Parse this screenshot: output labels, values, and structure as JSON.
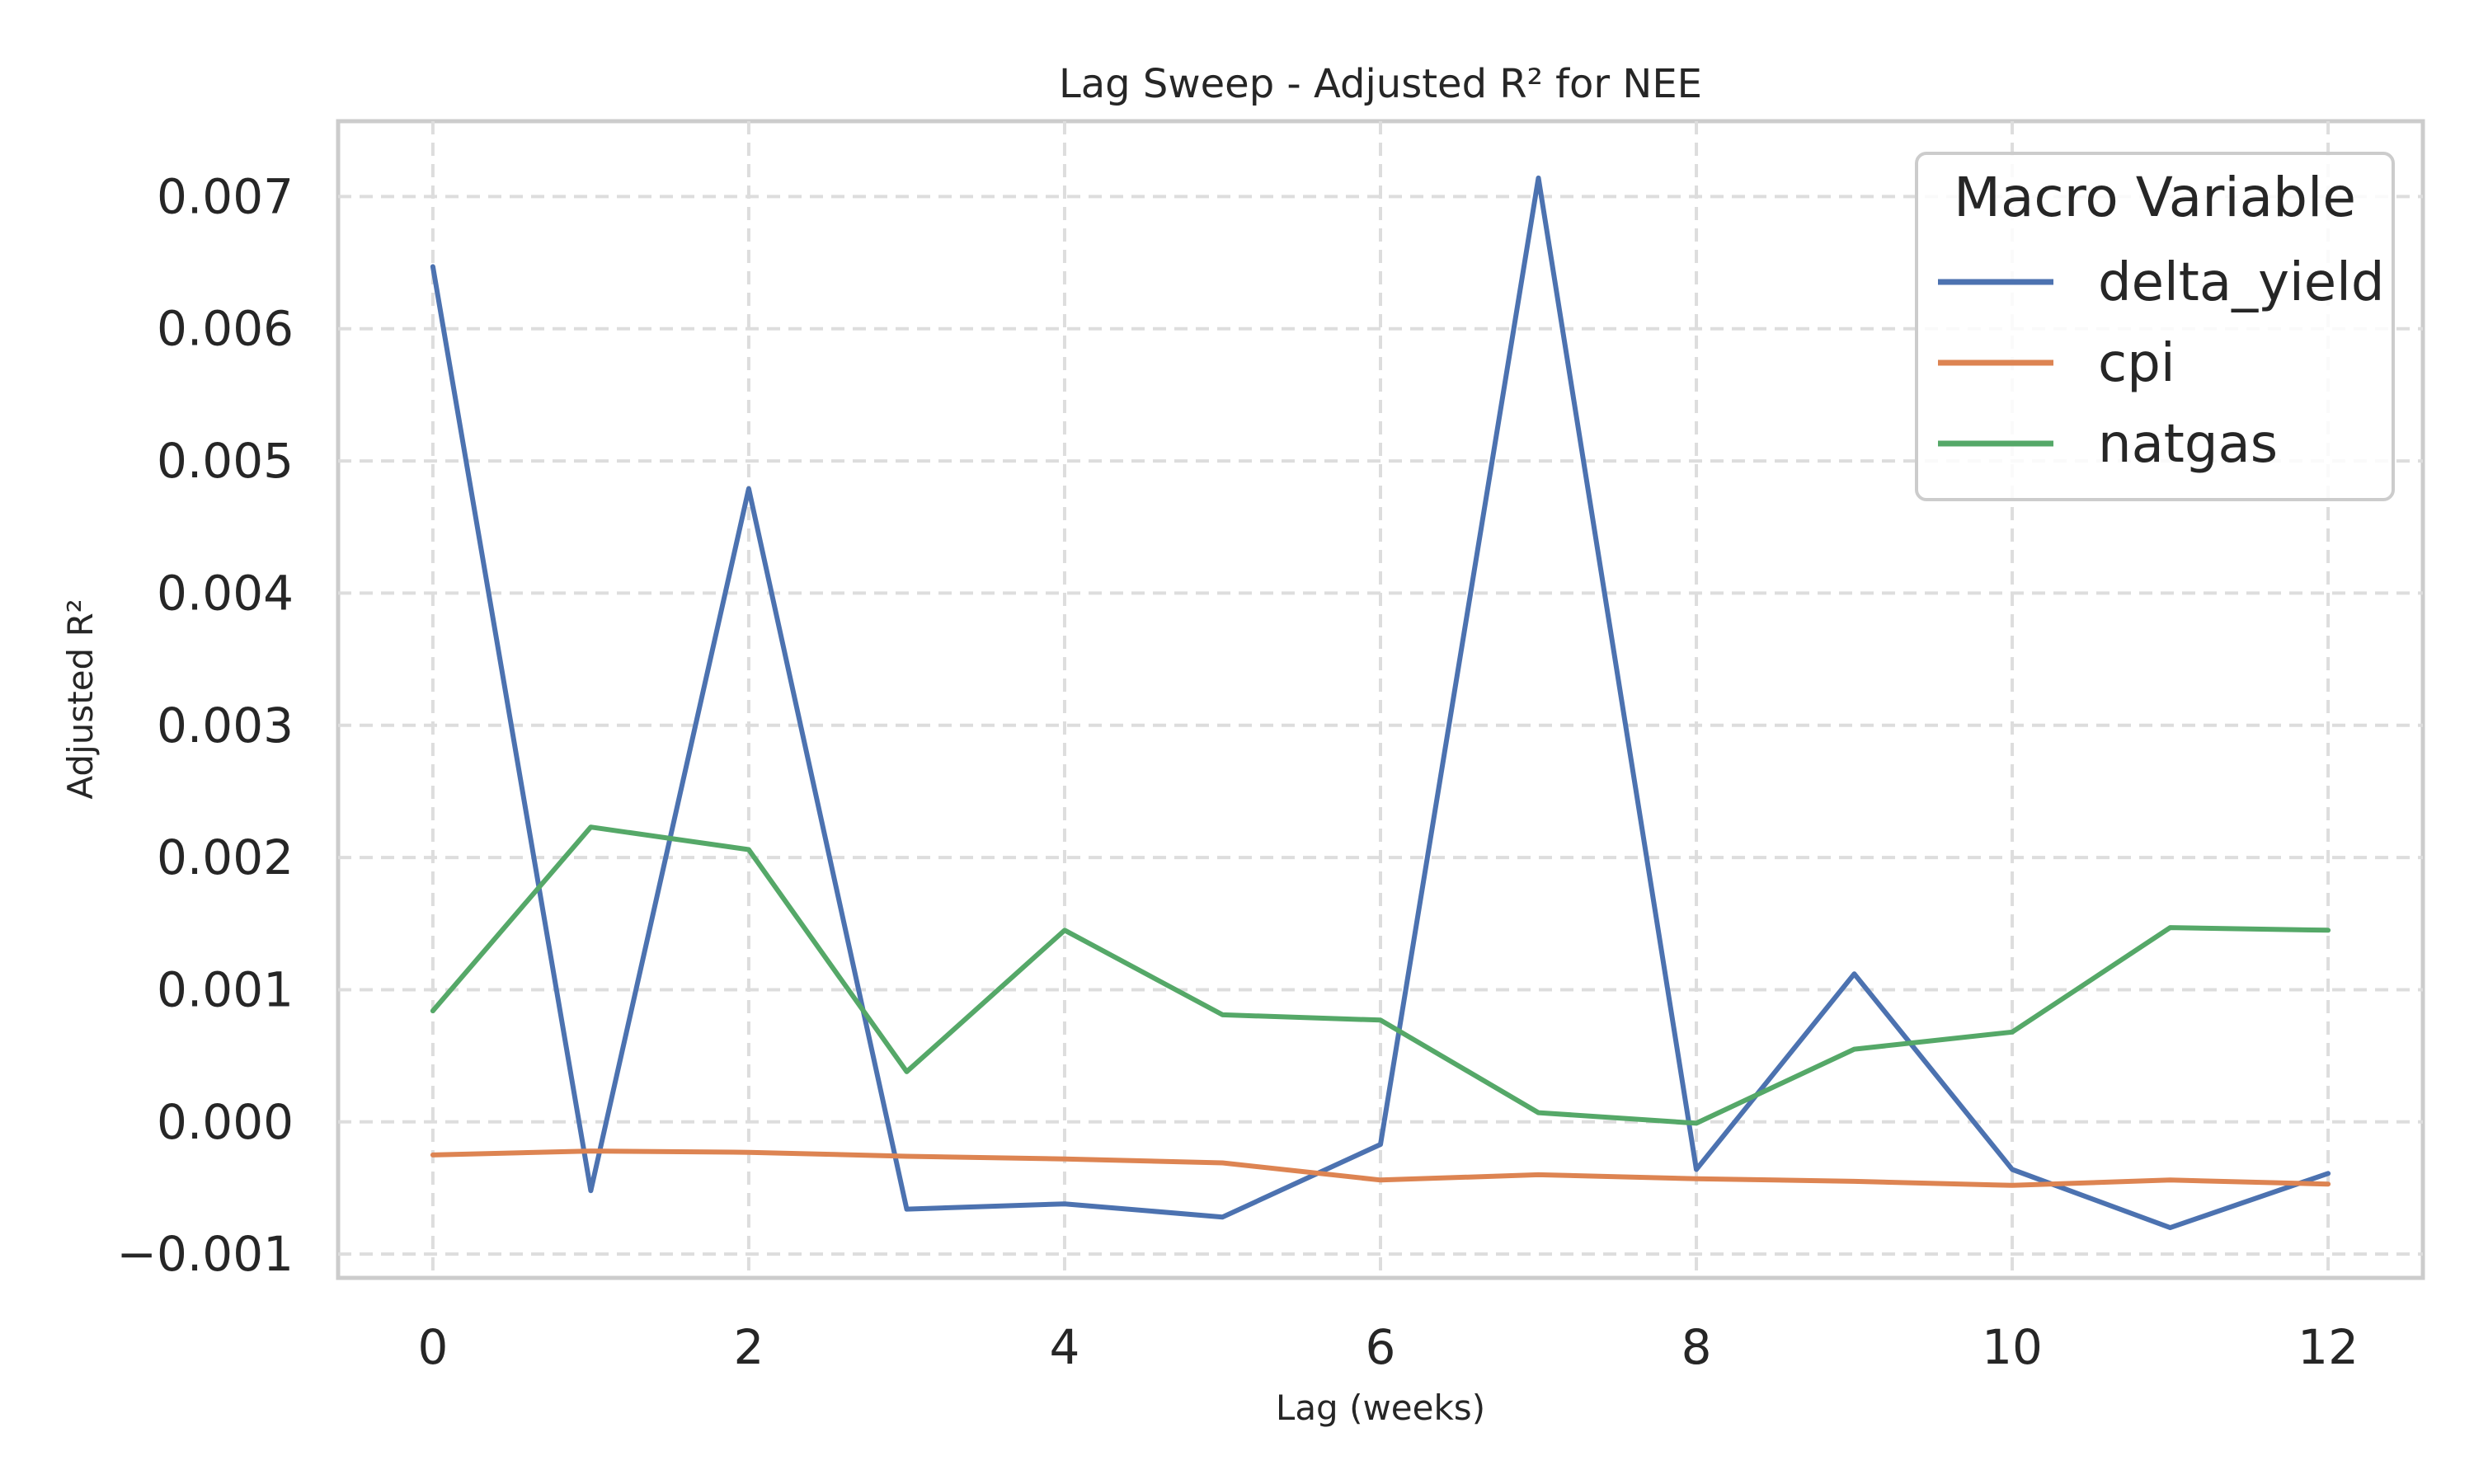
{
  "chart_data": {
    "type": "line",
    "title": "Lag Sweep - Adjusted R² for NEE",
    "xlabel": "Lag (weeks)",
    "ylabel": "Adjusted R²",
    "x": [
      0,
      1,
      2,
      3,
      4,
      5,
      6,
      7,
      8,
      9,
      10,
      11,
      12
    ],
    "xlim": [
      -0.6,
      12.6
    ],
    "ylim": [
      -0.00118,
      0.00757
    ],
    "x_ticks": [
      0,
      2,
      4,
      6,
      8,
      10,
      12
    ],
    "x_tick_labels": [
      "0",
      "2",
      "4",
      "6",
      "8",
      "10",
      "12"
    ],
    "y_ticks": [
      -0.001,
      0.0,
      0.001,
      0.002,
      0.003,
      0.004,
      0.005,
      0.006,
      0.007
    ],
    "y_tick_labels": [
      "−0.001",
      "0.000",
      "0.001",
      "0.002",
      "0.003",
      "0.004",
      "0.005",
      "0.006",
      "0.007"
    ],
    "grid": true,
    "legend": {
      "title": "Macro Variable",
      "placement": "top-right"
    },
    "series": [
      {
        "name": "delta_yield",
        "color": "#4c72b0",
        "values": [
          0.00647,
          -0.00052,
          0.00479,
          -0.00066,
          -0.00062,
          -0.00072,
          -0.00017,
          0.00714,
          -0.00036,
          0.00112,
          -0.00036,
          -0.0008,
          -0.00039
        ]
      },
      {
        "name": "cpi",
        "color": "#dd8452",
        "values": [
          -0.00025,
          -0.00022,
          -0.00023,
          -0.00026,
          -0.00028,
          -0.00031,
          -0.00044,
          -0.0004,
          -0.00043,
          -0.00045,
          -0.00048,
          -0.00044,
          -0.00047
        ]
      },
      {
        "name": "natgas",
        "color": "#55a868",
        "values": [
          0.00084,
          0.00223,
          0.00206,
          0.00038,
          0.00145,
          0.00081,
          0.00077,
          7e-05,
          -1e-05,
          0.00055,
          0.00068,
          0.00147,
          0.00145
        ]
      }
    ]
  }
}
